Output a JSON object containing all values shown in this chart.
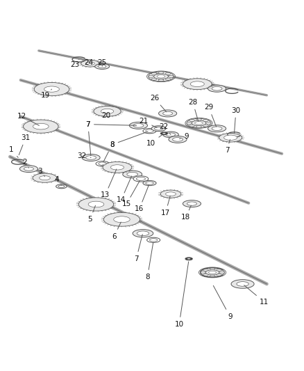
{
  "bg_color": "#ffffff",
  "line_color": "#333333",
  "gear_fill": "#e8e8e8",
  "gear_edge": "#555555",
  "shaft_color": "#cccccc",
  "label_color": "#111111",
  "label_fontsize": 7.5
}
